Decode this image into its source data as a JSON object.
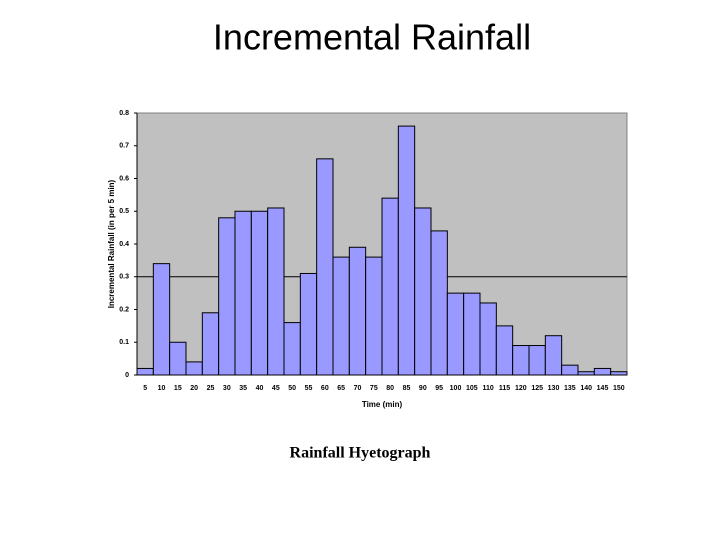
{
  "chart_data": {
    "type": "bar",
    "title": "Incremental Rainfall",
    "caption": "Rainfall Hyetograph",
    "x_label": "Time (min)",
    "y_label": "Incremental Rainfall (in per 5 min)",
    "categories": [
      "5",
      "10",
      "15",
      "20",
      "25",
      "30",
      "35",
      "40",
      "45",
      "50",
      "55",
      "60",
      "65",
      "70",
      "75",
      "80",
      "85",
      "90",
      "95",
      "100",
      "105",
      "110",
      "115",
      "120",
      "125",
      "130",
      "135",
      "140",
      "145",
      "150"
    ],
    "values": [
      0.02,
      0.34,
      0.1,
      0.04,
      0.19,
      0.48,
      0.5,
      0.5,
      0.51,
      0.16,
      0.31,
      0.66,
      0.36,
      0.39,
      0.36,
      0.54,
      0.76,
      0.51,
      0.44,
      0.25,
      0.25,
      0.22,
      0.15,
      0.09,
      0.09,
      0.12,
      0.03,
      0.01,
      0.02,
      0.01
    ],
    "color": "#9999ff",
    "background": "#c0c0c0",
    "ylim": [
      0,
      0.8
    ],
    "yticks": [
      0,
      0.1,
      0.2,
      0.3,
      0.4,
      0.5,
      0.6,
      0.7,
      0.8
    ],
    "hline": 0.3
  }
}
